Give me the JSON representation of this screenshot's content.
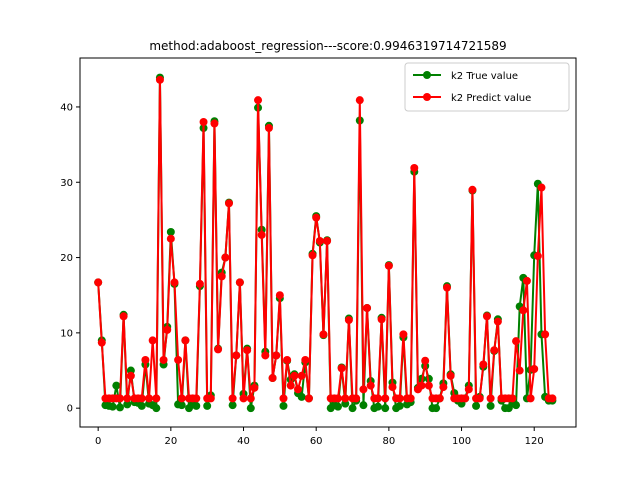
{
  "chart_data": {
    "type": "line",
    "title": "method:adaboost_regression---score:0.9946319714721589",
    "xlabel": "",
    "ylabel": "",
    "xlim": [
      -5,
      131.5
    ],
    "ylim": [
      -2.5,
      46.5
    ],
    "xticks": [
      0,
      20,
      40,
      60,
      80,
      100,
      120
    ],
    "yticks": [
      0,
      10,
      20,
      30,
      40
    ],
    "xtick_labels": [
      "0",
      "20",
      "40",
      "60",
      "80",
      "100",
      "120"
    ],
    "ytick_labels": [
      "0",
      "10",
      "20",
      "30",
      "40"
    ],
    "grid": false,
    "legend_position": "upper right",
    "series": [
      {
        "name": "k2 True value",
        "color": "#008000",
        "marker": "circle",
        "x": [
          0,
          1,
          2,
          3,
          4,
          5,
          6,
          7,
          8,
          9,
          10,
          11,
          12,
          13,
          14,
          15,
          16,
          17,
          18,
          19,
          20,
          21,
          22,
          23,
          24,
          25,
          26,
          27,
          28,
          29,
          30,
          31,
          32,
          33,
          34,
          35,
          36,
          37,
          38,
          39,
          40,
          41,
          42,
          43,
          44,
          45,
          46,
          47,
          48,
          49,
          50,
          51,
          52,
          53,
          54,
          55,
          56,
          57,
          58,
          59,
          60,
          61,
          62,
          63,
          64,
          65,
          66,
          67,
          68,
          69,
          70,
          71,
          72,
          73,
          74,
          75,
          76,
          77,
          78,
          79,
          80,
          81,
          82,
          83,
          84,
          85,
          86,
          87,
          88,
          89,
          90,
          91,
          92,
          93,
          94,
          95,
          96,
          97,
          98,
          99,
          100,
          101,
          102,
          103,
          104,
          105,
          106,
          107,
          108,
          109,
          110,
          111,
          112,
          113,
          114,
          115,
          116,
          117,
          118,
          119,
          120,
          121,
          122,
          123,
          124,
          125
        ],
        "values": [
          16.7,
          9.0,
          0.4,
          0.3,
          0.2,
          3.0,
          0.1,
          12.4,
          0.5,
          5.0,
          0.8,
          0.7,
          0.3,
          5.8,
          0.6,
          0.4,
          0.0,
          43.9,
          5.8,
          10.8,
          23.4,
          16.5,
          0.5,
          0.4,
          9.0,
          0.0,
          0.5,
          0.3,
          16.2,
          37.2,
          0.3,
          1.7,
          38.1,
          7.9,
          18.0,
          20.0,
          27.3,
          0.4,
          7.0,
          16.7,
          1.9,
          7.9,
          0.0,
          3.0,
          39.9,
          23.7,
          7.5,
          37.5,
          4.0,
          7.0,
          14.6,
          0.3,
          6.3,
          3.8,
          4.5,
          2.0,
          1.5,
          6.1,
          1.3,
          20.5,
          25.5,
          22.0,
          9.7,
          22.3,
          0.0,
          0.4,
          0.2,
          5.4,
          0.6,
          11.9,
          0.0,
          1.0,
          38.2,
          0.4,
          13.3,
          3.6,
          0.0,
          0.2,
          12.0,
          0.0,
          19.0,
          3.4,
          0.0,
          0.3,
          9.4,
          0.5,
          0.8,
          31.4,
          2.7,
          3.9,
          5.6,
          3.9,
          0.0,
          0.0,
          1.3,
          3.3,
          16.2,
          4.5,
          2.0,
          1.0,
          0.6,
          1.3,
          3.0,
          28.9,
          0.3,
          1.5,
          5.5,
          12.3,
          0.3,
          7.6,
          11.8,
          1.0,
          0.0,
          0.0,
          0.6,
          0.4,
          13.5,
          17.3,
          1.3,
          5.1,
          20.3,
          29.8,
          9.8,
          1.5,
          1.0,
          1.0
        ]
      },
      {
        "name": "k2 Predict value",
        "color": "#ff0000",
        "marker": "circle",
        "x": [
          0,
          1,
          2,
          3,
          4,
          5,
          6,
          7,
          8,
          9,
          10,
          11,
          12,
          13,
          14,
          15,
          16,
          17,
          18,
          19,
          20,
          21,
          22,
          23,
          24,
          25,
          26,
          27,
          28,
          29,
          30,
          31,
          32,
          33,
          34,
          35,
          36,
          37,
          38,
          39,
          40,
          41,
          42,
          43,
          44,
          45,
          46,
          47,
          48,
          49,
          50,
          51,
          52,
          53,
          54,
          55,
          56,
          57,
          58,
          59,
          60,
          61,
          62,
          63,
          64,
          65,
          66,
          67,
          68,
          69,
          70,
          71,
          72,
          73,
          74,
          75,
          76,
          77,
          78,
          79,
          80,
          81,
          82,
          83,
          84,
          85,
          86,
          87,
          88,
          89,
          90,
          91,
          92,
          93,
          94,
          95,
          96,
          97,
          98,
          99,
          100,
          101,
          102,
          103,
          104,
          105,
          106,
          107,
          108,
          109,
          110,
          111,
          112,
          113,
          114,
          115,
          116,
          117,
          118,
          119,
          120,
          121,
          122,
          123,
          124,
          125
        ],
        "values": [
          16.7,
          8.7,
          1.3,
          1.3,
          1.3,
          1.3,
          1.3,
          12.2,
          1.3,
          4.3,
          1.3,
          1.3,
          1.3,
          6.4,
          1.3,
          9.0,
          1.3,
          43.6,
          6.4,
          10.4,
          22.5,
          16.7,
          6.4,
          1.3,
          9.0,
          1.3,
          1.3,
          1.3,
          16.5,
          38.0,
          1.3,
          1.3,
          37.8,
          7.8,
          17.5,
          20.0,
          27.2,
          1.3,
          7.0,
          16.7,
          1.3,
          7.7,
          1.3,
          2.7,
          40.9,
          23.0,
          7.0,
          37.2,
          4.0,
          7.0,
          15.0,
          1.3,
          6.4,
          3.0,
          4.3,
          2.5,
          4.3,
          6.4,
          1.3,
          20.3,
          25.3,
          22.2,
          9.8,
          22.2,
          1.3,
          1.3,
          1.3,
          5.3,
          1.3,
          11.7,
          1.3,
          1.3,
          40.9,
          2.5,
          13.3,
          3.0,
          1.3,
          1.3,
          11.8,
          1.3,
          18.9,
          2.8,
          1.3,
          1.3,
          9.8,
          1.3,
          1.3,
          31.9,
          2.5,
          3.0,
          6.3,
          3.0,
          1.3,
          1.3,
          1.3,
          2.8,
          16.0,
          4.3,
          1.3,
          1.3,
          1.3,
          1.3,
          2.5,
          29.0,
          1.3,
          1.3,
          5.8,
          12.2,
          1.3,
          7.7,
          11.5,
          1.3,
          1.3,
          1.3,
          1.3,
          8.9,
          5.0,
          13.0,
          16.9,
          1.3,
          5.2,
          20.2,
          29.3,
          9.8,
          1.3,
          1.3
        ]
      }
    ]
  }
}
